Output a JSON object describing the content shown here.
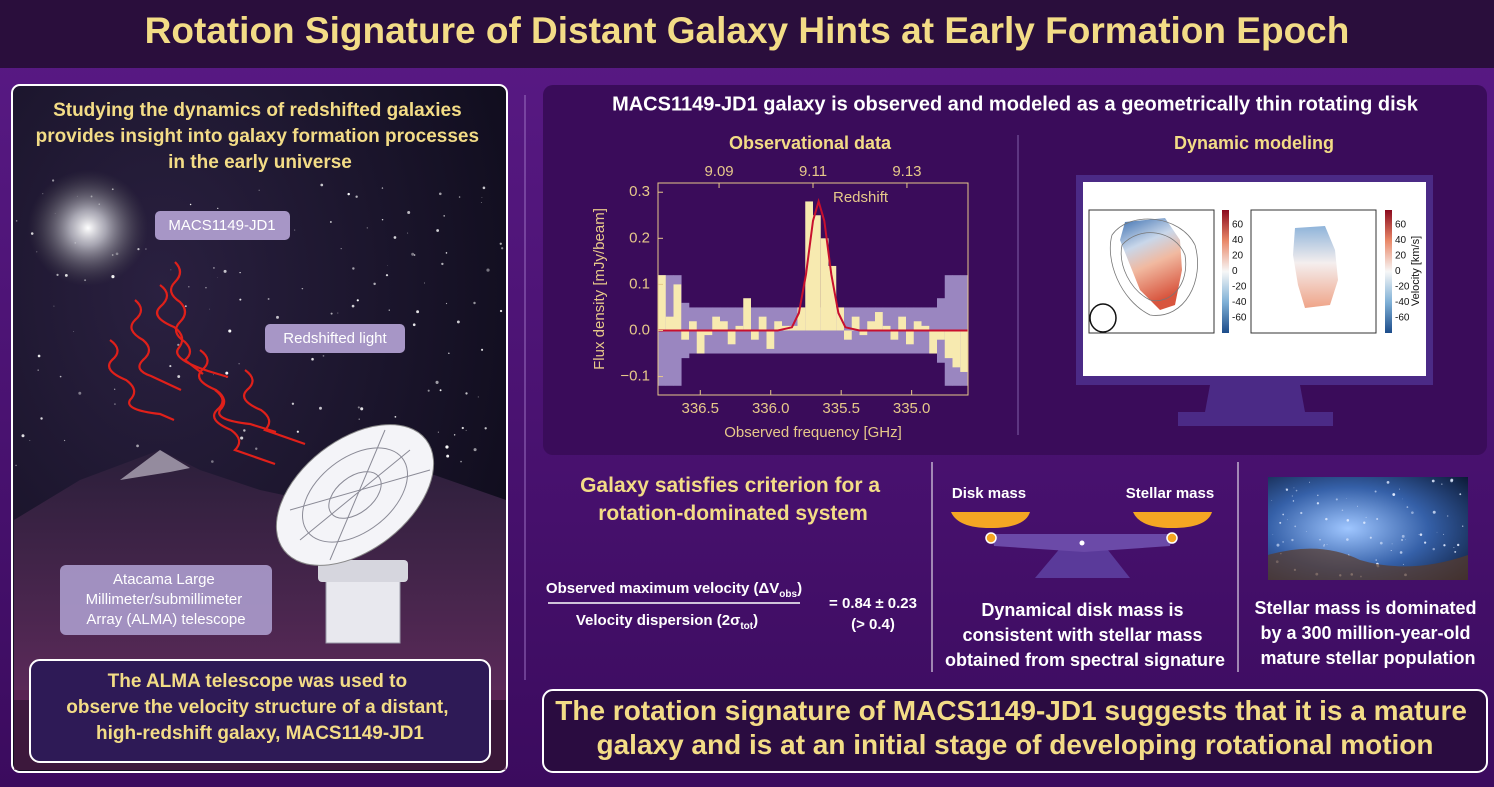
{
  "header": {
    "title": "Rotation Signature of Distant Galaxy Hints at Early Formation Epoch"
  },
  "left_panel": {
    "intro": [
      "Studying the dynamics of redshifted galaxies",
      "provides insight into galaxy formation processes",
      "in the early universe"
    ],
    "galaxy_label": "MACS1149-JD1",
    "light_label": "Redshifted light",
    "telescope_label": [
      "Atacama Large",
      "Millimeter/submillimeter",
      "Array (ALMA) telescope"
    ],
    "summary": [
      "The ALMA telescope was used to",
      "observe the velocity structure of a distant,",
      "high-redshift galaxy, MACS1149-JD1"
    ]
  },
  "top_right": {
    "heading": "MACS1149-JD1 galaxy is observed and modeled as a geometrically thin rotating disk",
    "observational_title": "Observational data",
    "modeling_title": "Dynamic modeling",
    "colorbar_ticks": [
      60,
      40,
      20,
      0,
      -20,
      -40,
      -60
    ],
    "colorbar_label": "Velocity [km/s]"
  },
  "chart_data": {
    "type": "histogram",
    "annotation": "Redshift",
    "xlabel": "Observed frequency [GHz]",
    "ylabel": "Flux density [mJy/beam]",
    "xlim": [
      336.8,
      334.6
    ],
    "xticks": [
      336.5,
      {
        "value": 336,
        "label": "336.0"
      },
      335.5,
      {
        "value": 335,
        "label": "335.0"
      }
    ],
    "x2lim": [
      9.077,
      9.143
    ],
    "x2ticks": [
      9.09,
      9.11,
      9.13
    ],
    "ylim": [
      -0.14,
      0.32
    ],
    "yticks": [
      {
        "value": -0.1,
        "label": "−0.1"
      },
      {
        "value": 0,
        "label": "0.0"
      },
      0.1,
      0.2,
      0.3
    ],
    "color": "#f7eab0",
    "bins": [
      336.8,
      336.745,
      336.69,
      336.635,
      336.58,
      336.525,
      336.47,
      336.415,
      336.36,
      336.305,
      336.25,
      336.195,
      336.14,
      336.085,
      336.03,
      335.975,
      335.92,
      335.865,
      335.81,
      335.755,
      335.7,
      335.645,
      335.59,
      335.535,
      335.48,
      335.425,
      335.37,
      335.315,
      335.26,
      335.205,
      335.15,
      335.095,
      335.04,
      334.985,
      334.93,
      334.875,
      334.82,
      334.765,
      334.71,
      334.655,
      334.6
    ],
    "values": [
      0.12,
      0.03,
      0.1,
      -0.02,
      0.02,
      -0.05,
      -0.01,
      0.03,
      0.02,
      -0.03,
      0.01,
      0.07,
      -0.02,
      0.03,
      -0.04,
      0.02,
      0.01,
      0.01,
      0.05,
      0.28,
      0.25,
      0.2,
      0.14,
      0.05,
      -0.02,
      0.03,
      -0.01,
      0.02,
      0.04,
      0.01,
      -0.02,
      0.03,
      -0.03,
      0.02,
      0.01,
      -0.05,
      -0.02,
      -0.06,
      -0.08,
      -0.09
    ],
    "noise_band": {
      "color": "#9a86c0",
      "values": [
        0.12,
        0.12,
        0.12,
        0.06,
        0.05,
        0.05,
        0.05,
        0.05,
        0.05,
        0.05,
        0.05,
        0.05,
        0.05,
        0.05,
        0.05,
        0.05,
        0.05,
        0.05,
        0.05,
        0.05,
        0.05,
        0.05,
        0.05,
        0.05,
        0.05,
        0.05,
        0.05,
        0.05,
        0.05,
        0.05,
        0.05,
        0.05,
        0.05,
        0.05,
        0.05,
        0.05,
        0.07,
        0.12,
        0.12,
        0.12
      ]
    },
    "fit": {
      "color": "#c8102e",
      "x": [
        336.8,
        335.95,
        335.85,
        335.8,
        335.75,
        335.7,
        335.66,
        335.62,
        335.57,
        335.52,
        335.47,
        335.37,
        334.6
      ],
      "values": [
        0,
        0,
        0.007,
        0.038,
        0.122,
        0.238,
        0.28,
        0.238,
        0.122,
        0.038,
        0.007,
        0,
        0
      ]
    }
  },
  "criterion": {
    "heading": [
      "Galaxy satisfies criterion for a",
      "rotation-dominated system"
    ],
    "numerator": [
      "Observed maximum velocity (ΔV",
      "obs",
      ")"
    ],
    "denominator": [
      "Velocity dispersion (2σ",
      "tot",
      ")"
    ],
    "result": "= 0.84 ± 0.23",
    "threshold": "(> 0.4)"
  },
  "mass": {
    "left_label": "Disk mass",
    "right_label": "Stellar mass",
    "caption": [
      "Dynamical disk mass is",
      "consistent with stellar mass",
      "obtained from spectral signature"
    ]
  },
  "stellar": {
    "caption": [
      "Stellar mass is dominated",
      "by a 300 million-year-old",
      "mature stellar population"
    ]
  },
  "conclusion": [
    "The rotation signature of MACS1149-JD1 suggests that it is a mature",
    "galaxy and is at an initial stage of developing rotational motion"
  ]
}
